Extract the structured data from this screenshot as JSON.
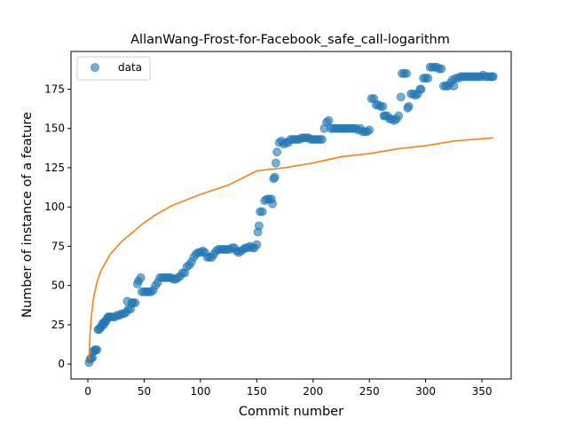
{
  "chart_data": {
    "type": "scatter",
    "title": "AllanWang-Frost-for-Facebook_safe_call-logarithm",
    "xlabel": "Commit number",
    "ylabel": "Number of instance of a feature",
    "xlim": [
      -15,
      376
    ],
    "ylim": [
      -9.5,
      199
    ],
    "xticks": [
      0,
      50,
      100,
      150,
      200,
      250,
      300,
      350
    ],
    "yticks": [
      0,
      25,
      50,
      75,
      100,
      125,
      150,
      175
    ],
    "grid": false,
    "legend": {
      "position": "top-left",
      "entries": [
        "data"
      ]
    },
    "colors": {
      "data": "#1f77b4",
      "fit": "#ff7f0e"
    },
    "series": [
      {
        "name": "data",
        "kind": "scatter",
        "points": [
          [
            1,
            1
          ],
          [
            2,
            3
          ],
          [
            3,
            4
          ],
          [
            4,
            4
          ],
          [
            5,
            8
          ],
          [
            6,
            9
          ],
          [
            7,
            9
          ],
          [
            8,
            9
          ],
          [
            9,
            22
          ],
          [
            10,
            22
          ],
          [
            11,
            23
          ],
          [
            12,
            24
          ],
          [
            13,
            26
          ],
          [
            14,
            25
          ],
          [
            15,
            27
          ],
          [
            16,
            27
          ],
          [
            17,
            29
          ],
          [
            18,
            30
          ],
          [
            19,
            30
          ],
          [
            20,
            30
          ],
          [
            22,
            30
          ],
          [
            24,
            30
          ],
          [
            26,
            31
          ],
          [
            28,
            31
          ],
          [
            30,
            32
          ],
          [
            32,
            32
          ],
          [
            34,
            33
          ],
          [
            35,
            40
          ],
          [
            36,
            35
          ],
          [
            38,
            35
          ],
          [
            39,
            39
          ],
          [
            40,
            39
          ],
          [
            42,
            39
          ],
          [
            44,
            51
          ],
          [
            45,
            53
          ],
          [
            47,
            55
          ],
          [
            48,
            46
          ],
          [
            50,
            46
          ],
          [
            52,
            46
          ],
          [
            54,
            46
          ],
          [
            56,
            46
          ],
          [
            58,
            47
          ],
          [
            60,
            50
          ],
          [
            62,
            52
          ],
          [
            64,
            55
          ],
          [
            66,
            55
          ],
          [
            68,
            55
          ],
          [
            70,
            55
          ],
          [
            72,
            55
          ],
          [
            74,
            55
          ],
          [
            76,
            54
          ],
          [
            78,
            54
          ],
          [
            80,
            55
          ],
          [
            82,
            56
          ],
          [
            84,
            58
          ],
          [
            86,
            58
          ],
          [
            88,
            62
          ],
          [
            90,
            63
          ],
          [
            92,
            65
          ],
          [
            94,
            68
          ],
          [
            96,
            70
          ],
          [
            98,
            71
          ],
          [
            100,
            71
          ],
          [
            102,
            72
          ],
          [
            104,
            71
          ],
          [
            106,
            68
          ],
          [
            108,
            68
          ],
          [
            110,
            68
          ],
          [
            112,
            70
          ],
          [
            114,
            72
          ],
          [
            116,
            73
          ],
          [
            118,
            73
          ],
          [
            120,
            73
          ],
          [
            122,
            73
          ],
          [
            124,
            73
          ],
          [
            126,
            73
          ],
          [
            128,
            74
          ],
          [
            130,
            74
          ],
          [
            132,
            72
          ],
          [
            134,
            71
          ],
          [
            136,
            72
          ],
          [
            138,
            73
          ],
          [
            140,
            74
          ],
          [
            142,
            74
          ],
          [
            144,
            75
          ],
          [
            146,
            74
          ],
          [
            148,
            74
          ],
          [
            150,
            76
          ],
          [
            151,
            84
          ],
          [
            152,
            88
          ],
          [
            153,
            97
          ],
          [
            155,
            97
          ],
          [
            157,
            104
          ],
          [
            159,
            105
          ],
          [
            161,
            105
          ],
          [
            163,
            105
          ],
          [
            164,
            102
          ],
          [
            165,
            118
          ],
          [
            166,
            119
          ],
          [
            167,
            128
          ],
          [
            168,
            135
          ],
          [
            170,
            141
          ],
          [
            172,
            142
          ],
          [
            174,
            140
          ],
          [
            176,
            141
          ],
          [
            178,
            141
          ],
          [
            180,
            143
          ],
          [
            182,
            143
          ],
          [
            184,
            143
          ],
          [
            186,
            143
          ],
          [
            188,
            143
          ],
          [
            190,
            144
          ],
          [
            192,
            144
          ],
          [
            194,
            144
          ],
          [
            196,
            144
          ],
          [
            198,
            143
          ],
          [
            200,
            143
          ],
          [
            202,
            143
          ],
          [
            204,
            143
          ],
          [
            206,
            143
          ],
          [
            208,
            143
          ],
          [
            210,
            150
          ],
          [
            212,
            154
          ],
          [
            214,
            155
          ],
          [
            216,
            150
          ],
          [
            218,
            150
          ],
          [
            220,
            150
          ],
          [
            222,
            150
          ],
          [
            224,
            150
          ],
          [
            226,
            150
          ],
          [
            228,
            150
          ],
          [
            230,
            150
          ],
          [
            232,
            150
          ],
          [
            234,
            150
          ],
          [
            236,
            150
          ],
          [
            238,
            150
          ],
          [
            240,
            149
          ],
          [
            242,
            150
          ],
          [
            244,
            148
          ],
          [
            246,
            148
          ],
          [
            248,
            148
          ],
          [
            250,
            149
          ],
          [
            252,
            169
          ],
          [
            254,
            169
          ],
          [
            256,
            165
          ],
          [
            258,
            165
          ],
          [
            260,
            164
          ],
          [
            262,
            164
          ],
          [
            263,
            158
          ],
          [
            264,
            158
          ],
          [
            266,
            158
          ],
          [
            268,
            156
          ],
          [
            270,
            156
          ],
          [
            272,
            155
          ],
          [
            274,
            156
          ],
          [
            276,
            158
          ],
          [
            278,
            170
          ],
          [
            279,
            185
          ],
          [
            281,
            185
          ],
          [
            283,
            185
          ],
          [
            284,
            163
          ],
          [
            285,
            164
          ],
          [
            287,
            172
          ],
          [
            289,
            172
          ],
          [
            291,
            171
          ],
          [
            293,
            172
          ],
          [
            295,
            175
          ],
          [
            296,
            175
          ],
          [
            298,
            182
          ],
          [
            300,
            182
          ],
          [
            302,
            182
          ],
          [
            304,
            189
          ],
          [
            306,
            189
          ],
          [
            308,
            189
          ],
          [
            310,
            189
          ],
          [
            312,
            188
          ],
          [
            314,
            188
          ],
          [
            316,
            177
          ],
          [
            318,
            177
          ],
          [
            320,
            177
          ],
          [
            322,
            179
          ],
          [
            324,
            181
          ],
          [
            325,
            177
          ],
          [
            327,
            182
          ],
          [
            329,
            182
          ],
          [
            331,
            183
          ],
          [
            333,
            183
          ],
          [
            335,
            183
          ],
          [
            337,
            183
          ],
          [
            339,
            183
          ],
          [
            341,
            183
          ],
          [
            343,
            183
          ],
          [
            345,
            183
          ],
          [
            347,
            183
          ],
          [
            349,
            183
          ],
          [
            351,
            184
          ],
          [
            353,
            183
          ],
          [
            355,
            183
          ],
          [
            357,
            183
          ],
          [
            359,
            183
          ],
          [
            360,
            183
          ]
        ]
      },
      {
        "name": "",
        "kind": "line",
        "function": "logarithmic",
        "x_range": [
          1,
          360
        ],
        "points": [
          [
            1,
            3
          ],
          [
            2,
            20
          ],
          [
            3,
            30
          ],
          [
            5,
            42
          ],
          [
            8,
            52
          ],
          [
            12,
            60
          ],
          [
            20,
            70
          ],
          [
            30,
            78
          ],
          [
            40,
            84
          ],
          [
            50,
            90
          ],
          [
            60,
            95
          ],
          [
            75,
            101
          ],
          [
            100,
            108
          ],
          [
            125,
            114
          ],
          [
            150,
            123
          ],
          [
            175,
            125
          ],
          [
            200,
            128
          ],
          [
            225,
            132
          ],
          [
            250,
            134
          ],
          [
            275,
            137
          ],
          [
            300,
            139
          ],
          [
            325,
            142
          ],
          [
            360,
            144
          ]
        ]
      }
    ]
  }
}
